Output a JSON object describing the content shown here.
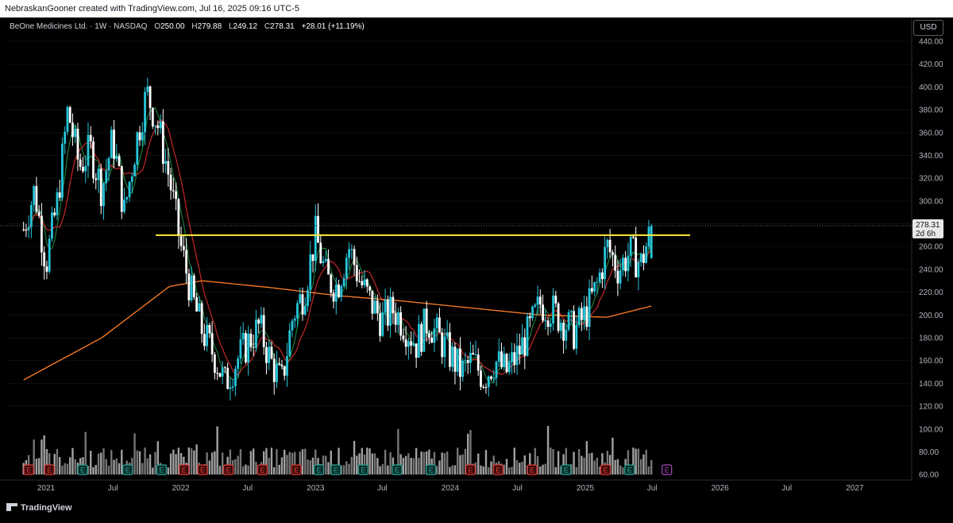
{
  "header": {
    "attribution": "NebraskanGooner created with TradingView.com, Jul 16, 2025 09:16 UTC-5"
  },
  "legend": {
    "symbol": "BeOne Medicines Ltd. · 1W · NASDAQ",
    "open_label": "O",
    "open": "250.00",
    "high_label": "H",
    "high": "279.88",
    "low_label": "L",
    "low": "249.12",
    "close_label": "C",
    "close": "278.31",
    "change": "+28.01 (+11.19%)"
  },
  "currency": "USD",
  "price_tag": {
    "price": "278.31",
    "countdown": "2d 6h"
  },
  "branding": "TradingView",
  "colors": {
    "up": "#26c6da",
    "down": "#ffffff",
    "ma_fast": "#1b7a3a",
    "ma_mid": "#c62828",
    "ma_slow": "#ff7f27",
    "resistance": "#ffeb3b",
    "earnings_badge": "#e53935",
    "dividend_badge": "#26a69a",
    "next_earnings_badge": "#ab47bc"
  },
  "chart_data": {
    "type": "candlestick",
    "y_axis_labels": [
      "440.00",
      "420.00",
      "400.00",
      "380.00",
      "360.00",
      "340.00",
      "320.00",
      "300.00",
      "280.00",
      "260.00",
      "240.00",
      "220.00",
      "200.00",
      "180.00",
      "160.00",
      "140.00",
      "120.00"
    ],
    "volume_axis_labels": [
      "100.00",
      "80.00",
      "60.00"
    ],
    "x_axis_labels": [
      "2021",
      "Jul",
      "2022",
      "Jul",
      "2023",
      "Jul",
      "2024",
      "Jul",
      "2025",
      "Jul",
      "2026",
      "Jul",
      "2027"
    ],
    "ylim": [
      110,
      450
    ],
    "resistance_level": 270,
    "last_price": 278.31,
    "volume_ylim": [
      55,
      110
    ],
    "weekly_close_anchors": [
      [
        "2020-11-01",
        275
      ],
      [
        "2020-12-01",
        310
      ],
      [
        "2021-01-01",
        245
      ],
      [
        "2021-02-01",
        300
      ],
      [
        "2021-03-01",
        380
      ],
      [
        "2021-04-01",
        330
      ],
      [
        "2021-05-01",
        345
      ],
      [
        "2021-06-01",
        310
      ],
      [
        "2021-07-01",
        355
      ],
      [
        "2021-08-01",
        290
      ],
      [
        "2021-09-01",
        350
      ],
      [
        "2021-10-01",
        395
      ],
      [
        "2021-11-01",
        365
      ],
      [
        "2021-12-01",
        320
      ],
      [
        "2022-01-01",
        260
      ],
      [
        "2022-02-01",
        215
      ],
      [
        "2022-03-01",
        185
      ],
      [
        "2022-04-01",
        165
      ],
      [
        "2022-05-01",
        140
      ],
      [
        "2022-06-01",
        160
      ],
      [
        "2022-07-01",
        175
      ],
      [
        "2022-08-01",
        190
      ],
      [
        "2022-09-01",
        160
      ],
      [
        "2022-10-01",
        140
      ],
      [
        "2022-11-01",
        200
      ],
      [
        "2022-12-01",
        220
      ],
      [
        "2023-01-01",
        270
      ],
      [
        "2023-02-01",
        230
      ],
      [
        "2023-03-01",
        225
      ],
      [
        "2023-04-01",
        260
      ],
      [
        "2023-05-01",
        230
      ],
      [
        "2023-06-01",
        210
      ],
      [
        "2023-07-01",
        195
      ],
      [
        "2023-08-01",
        205
      ],
      [
        "2023-09-01",
        190
      ],
      [
        "2023-10-01",
        175
      ],
      [
        "2023-11-01",
        195
      ],
      [
        "2023-12-01",
        180
      ],
      [
        "2024-01-01",
        165
      ],
      [
        "2024-02-01",
        150
      ],
      [
        "2024-03-01",
        160
      ],
      [
        "2024-04-01",
        145
      ],
      [
        "2024-05-01",
        160
      ],
      [
        "2024-06-01",
        150
      ],
      [
        "2024-07-01",
        165
      ],
      [
        "2024-08-01",
        185
      ],
      [
        "2024-09-01",
        210
      ],
      [
        "2024-10-01",
        205
      ],
      [
        "2024-11-01",
        195
      ],
      [
        "2024-12-01",
        185
      ],
      [
        "2025-01-01",
        200
      ],
      [
        "2025-02-01",
        225
      ],
      [
        "2025-03-01",
        260
      ],
      [
        "2025-04-01",
        240
      ],
      [
        "2025-05-01",
        255
      ],
      [
        "2025-06-01",
        245
      ],
      [
        "2025-07-01",
        278.31
      ]
    ],
    "ma_slow_anchors": [
      [
        "2020-11-01",
        143
      ],
      [
        "2021-06-01",
        180
      ],
      [
        "2021-12-01",
        225
      ],
      [
        "2022-03-01",
        230
      ],
      [
        "2022-09-01",
        224
      ],
      [
        "2023-03-01",
        217
      ],
      [
        "2023-09-01",
        212
      ],
      [
        "2024-03-01",
        206
      ],
      [
        "2024-09-01",
        200
      ],
      [
        "2025-03-01",
        198
      ],
      [
        "2025-07-01",
        208
      ]
    ],
    "event_badges": [
      [
        "2020-11-15",
        "E",
        "earnings"
      ],
      [
        "2021-01-10",
        "E",
        "earnings"
      ],
      [
        "2021-04-10",
        "E",
        "dividend"
      ],
      [
        "2021-08-10",
        "E",
        "dividend"
      ],
      [
        "2021-11-10",
        "E",
        "dividend"
      ],
      [
        "2022-01-10",
        "E",
        "earnings"
      ],
      [
        "2022-03-01",
        "E",
        "earnings"
      ],
      [
        "2022-05-10",
        "E",
        "earnings"
      ],
      [
        "2022-08-10",
        "E",
        "earnings"
      ],
      [
        "2022-11-10",
        "E",
        "earnings"
      ],
      [
        "2023-01-10",
        "E",
        "dividend"
      ],
      [
        "2023-02-25",
        "E",
        "dividend"
      ],
      [
        "2023-05-10",
        "E",
        "dividend"
      ],
      [
        "2023-08-10",
        "E",
        "dividend"
      ],
      [
        "2023-11-10",
        "E",
        "dividend"
      ],
      [
        "2024-02-25",
        "E",
        "earnings"
      ],
      [
        "2024-05-10",
        "E",
        "earnings"
      ],
      [
        "2024-08-10",
        "E",
        "earnings"
      ],
      [
        "2024-11-10",
        "E",
        "dividend"
      ],
      [
        "2025-02-25",
        "E",
        "earnings"
      ],
      [
        "2025-05-01",
        "E",
        "dividend"
      ],
      [
        "2025-08-10",
        "E",
        "next"
      ]
    ]
  }
}
